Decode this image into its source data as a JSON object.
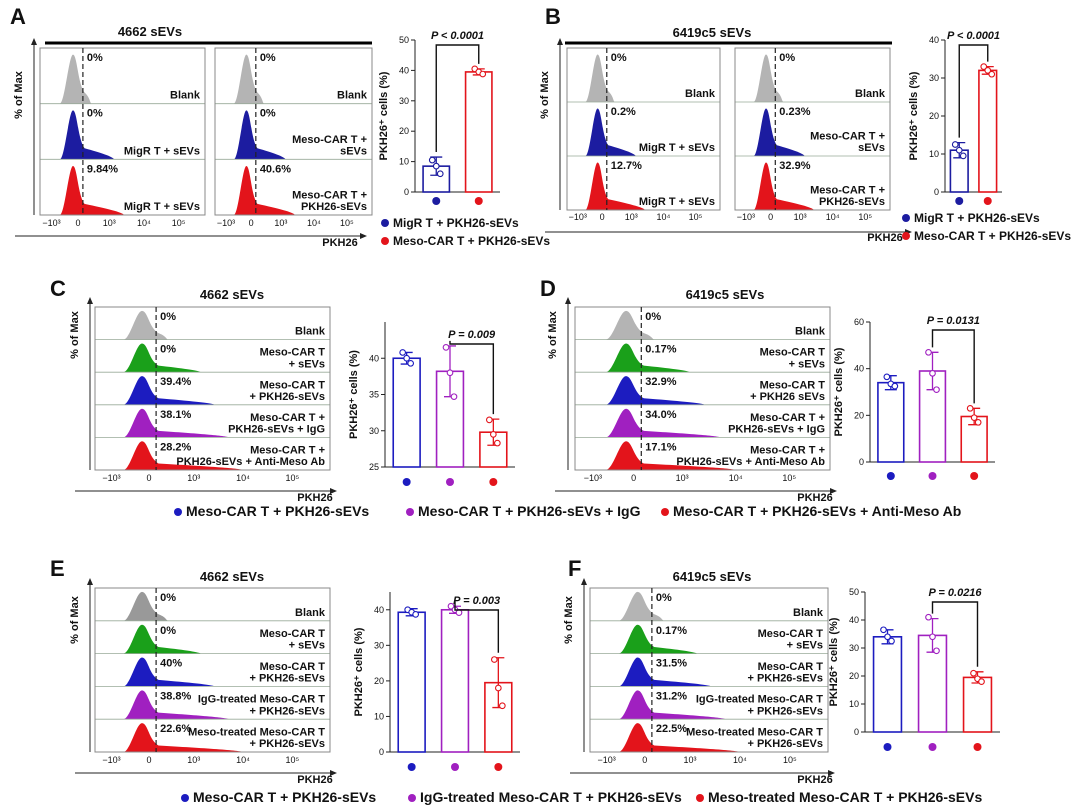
{
  "figure_letters": [
    "A",
    "B",
    "C",
    "D",
    "E",
    "F"
  ],
  "flow_panels": [
    {
      "title": "4662 sEVs",
      "ylabel": "% of Max",
      "xlabel": "PKH26",
      "xticks": [
        "−10³",
        "0",
        "10³",
        "10⁴",
        "10⁵"
      ],
      "boxes": [
        {
          "rows": [
            {
              "label": "Blank",
              "pct": "0%",
              "color": "#b4b4b4"
            },
            {
              "label": "MigR T + sEVs",
              "pct": "0%",
              "color": "#1c1ca0"
            },
            {
              "label": "MigR T +  sEVs",
              "pct": "9.84%",
              "color": "#e3141b"
            }
          ]
        },
        {
          "rows": [
            {
              "label": "Blank",
              "pct": "0%",
              "color": "#b4b4b4"
            },
            {
              "label": "Meso-CAR T +\nsEVs",
              "pct": "0%",
              "color": "#1c1ca0"
            },
            {
              "label": "Meso-CAR T +\nPKH26-sEVs",
              "pct": "40.6%",
              "color": "#e3141b"
            }
          ]
        }
      ]
    },
    {
      "title": "6419c5 sEVs",
      "ylabel": "% of Max",
      "xlabel": "PKH26",
      "xticks": [
        "−10³",
        "0",
        "10³",
        "10⁴",
        "10⁵"
      ],
      "boxes": [
        {
          "rows": [
            {
              "label": "Blank",
              "pct": "0%",
              "color": "#b4b4b4"
            },
            {
              "label": "MigR T + sEVs",
              "pct": "0.2%",
              "color": "#1c1ca0"
            },
            {
              "label": "MigR T +  sEVs",
              "pct": "12.7%",
              "color": "#e3141b"
            }
          ]
        },
        {
          "rows": [
            {
              "label": "Blank",
              "pct": "0%",
              "color": "#b4b4b4"
            },
            {
              "label": "Meso-CAR T +\nsEVs",
              "pct": "0.23%",
              "color": "#1c1ca0"
            },
            {
              "label": "Meso-CAR T +\nPKH26-sEVs",
              "pct": "32.9%",
              "color": "#e3141b"
            }
          ]
        }
      ]
    },
    {
      "title": "4662 sEVs",
      "ylabel": "% of Max",
      "xlabel": "PKH26",
      "xticks": [
        "−10³",
        "0",
        "10³",
        "10⁴",
        "10⁵"
      ],
      "boxes": [
        {
          "rows": [
            {
              "label": "Blank",
              "pct": "0%",
              "color": "#b4b4b4"
            },
            {
              "label": "Meso-CAR T\n+ sEVs",
              "pct": "0%",
              "color": "#1aa01a"
            },
            {
              "label": "Meso-CAR T\n+ PKH26-sEVs",
              "pct": "39.4%",
              "color": "#1c1cc0"
            },
            {
              "label": "Meso-CAR T +\nPKH26-sEVs + IgG",
              "pct": "38.1%",
              "color": "#a020c0"
            },
            {
              "label": "Meso-CAR T +\nPKH26-sEVs + Anti-Meso Ab",
              "pct": "28.2%",
              "color": "#e3141b"
            }
          ]
        }
      ]
    },
    {
      "title": "6419c5 sEVs",
      "ylabel": "% of Max",
      "xlabel": "PKH26",
      "xticks": [
        "−10³",
        "0",
        "10³",
        "10⁴",
        "10⁵"
      ],
      "boxes": [
        {
          "rows": [
            {
              "label": "Blank",
              "pct": "0%",
              "color": "#b4b4b4"
            },
            {
              "label": "Meso-CAR T\n+ sEVs",
              "pct": "0.17%",
              "color": "#1aa01a"
            },
            {
              "label": "Meso-CAR T\n+ PKH26 sEVs",
              "pct": "32.9%",
              "color": "#1c1cc0"
            },
            {
              "label": "Meso-CAR T +\nPKH26-sEVs + IgG",
              "pct": "34.0%",
              "color": "#a020c0"
            },
            {
              "label": "Meso-CAR T +\nPKH26-sEVs + Anti-Meso Ab",
              "pct": "17.1%",
              "color": "#e3141b"
            }
          ]
        }
      ]
    },
    {
      "title": "4662 sEVs",
      "ylabel": "% of Max",
      "xlabel": "PKH26",
      "xticks": [
        "−10³",
        "0",
        "10³",
        "10⁴",
        "10⁵"
      ],
      "boxes": [
        {
          "rows": [
            {
              "label": "Blank",
              "pct": "0%",
              "color": "#999999"
            },
            {
              "label": "Meso-CAR T\n+ sEVs",
              "pct": "0%",
              "color": "#1aa01a"
            },
            {
              "label": "Meso-CAR T\n+ PKH26-sEVs",
              "pct": "40%",
              "color": "#1c1cc0"
            },
            {
              "label": "IgG-treated Meso-CAR T\n+ PKH26-sEVs",
              "pct": "38.8%",
              "color": "#a020c0"
            },
            {
              "label": "Meso-treated Meso-CAR T\n+ PKH26-sEVs",
              "pct": "22.6%",
              "color": "#e3141b"
            }
          ]
        }
      ]
    },
    {
      "title": "6419c5 sEVs",
      "ylabel": "% of Max",
      "xlabel": "PKH26",
      "xticks": [
        "−10³",
        "0",
        "10³",
        "10⁴",
        "10⁵"
      ],
      "boxes": [
        {
          "rows": [
            {
              "label": "Blank",
              "pct": "0%",
              "color": "#b4b4b4"
            },
            {
              "label": "Meso-CAR T\n+ sEVs",
              "pct": "0.17%",
              "color": "#1aa01a"
            },
            {
              "label": "Meso-CAR T\n+ PKH26-sEVs",
              "pct": "31.5%",
              "color": "#1c1cc0"
            },
            {
              "label": "IgG-treated Meso-CAR T\n+ PKH26-sEVs",
              "pct": "31.2%",
              "color": "#a020c0"
            },
            {
              "label": "Meso-treated Meso-CAR T\n+ PKH26-sEVs",
              "pct": "22.5%",
              "color": "#e3141b"
            }
          ]
        }
      ]
    }
  ],
  "chart_data": [
    {
      "type": "bar",
      "title": "P < 0.0001",
      "ylabel": "PKH26⁺ cells (%)",
      "categories": [
        null,
        null
      ],
      "colors": [
        "#1c1ca0",
        "#e3141b"
      ],
      "values": [
        8.5,
        39.5
      ],
      "errors": [
        3,
        1
      ],
      "points": [
        [
          10.5,
          8.5,
          6
        ],
        [
          40.5,
          39.5,
          38.8
        ]
      ],
      "ylim": [
        0,
        50
      ],
      "yticks": [
        0,
        10,
        20,
        30,
        40,
        50
      ],
      "bracket": [
        0,
        1
      ]
    },
    {
      "type": "bar",
      "title": "P < 0.0001",
      "ylabel": "PKH26⁺ cells (%)",
      "categories": [
        null,
        null
      ],
      "colors": [
        "#1c1ca0",
        "#e3141b"
      ],
      "values": [
        11,
        32
      ],
      "errors": [
        2,
        1
      ],
      "points": [
        [
          12.5,
          11,
          9.5
        ],
        [
          33,
          32,
          31
        ]
      ],
      "ylim": [
        0,
        40
      ],
      "yticks": [
        0,
        10,
        20,
        30,
        40
      ],
      "bracket": [
        0,
        1
      ]
    },
    {
      "type": "bar",
      "title": "P = 0.009",
      "ylabel": "PKH26⁺ cells (%)",
      "categories": [
        null,
        null,
        null
      ],
      "colors": [
        "#1c1cc0",
        "#a020c0",
        "#e3141b"
      ],
      "values": [
        40,
        38.2,
        29.8
      ],
      "errors": [
        0.8,
        3.5,
        1.8
      ],
      "points": [
        [
          40.8,
          40,
          39.3
        ],
        [
          41.5,
          38,
          34.7
        ],
        [
          31.5,
          29.5,
          28.3
        ]
      ],
      "ylim": [
        25,
        45
      ],
      "yticks": [
        25,
        30,
        35,
        40
      ],
      "bracket": [
        1,
        2
      ]
    },
    {
      "type": "bar",
      "title": "P = 0.0131",
      "ylabel": "PKH26⁺ cells (%)",
      "categories": [
        null,
        null,
        null
      ],
      "colors": [
        "#1c1cc0",
        "#a020c0",
        "#e3141b"
      ],
      "values": [
        34,
        39,
        19.5
      ],
      "errors": [
        3,
        8,
        3.5
      ],
      "points": [
        [
          36.5,
          33.5,
          32.5
        ],
        [
          47,
          38,
          31
        ],
        [
          23,
          19,
          17
        ]
      ],
      "ylim": [
        0,
        60
      ],
      "yticks": [
        0,
        20,
        40,
        60
      ],
      "bracket": [
        1,
        2
      ]
    },
    {
      "type": "bar",
      "title": "P = 0.003",
      "ylabel": "PKH26⁺ cells (%)",
      "categories": [
        null,
        null,
        null
      ],
      "colors": [
        "#1c1cc0",
        "#a020c0",
        "#e3141b"
      ],
      "values": [
        39.3,
        40,
        19.5
      ],
      "errors": [
        1,
        1,
        7
      ],
      "points": [
        [
          40,
          39.3,
          38.7
        ],
        [
          41,
          40,
          39.2
        ],
        [
          26,
          18,
          13
        ]
      ],
      "ylim": [
        0,
        45
      ],
      "yticks": [
        0,
        10,
        20,
        30,
        40
      ],
      "bracket": [
        1,
        2
      ]
    },
    {
      "type": "bar",
      "title": "P = 0.0216",
      "ylabel": "PKH26⁺ cells (%)",
      "categories": [
        null,
        null,
        null
      ],
      "colors": [
        "#1c1cc0",
        "#a020c0",
        "#e3141b"
      ],
      "values": [
        34,
        34.5,
        19.5
      ],
      "errors": [
        2.5,
        6,
        2
      ],
      "points": [
        [
          36.5,
          34,
          32.5
        ],
        [
          41,
          34,
          29
        ],
        [
          21,
          19,
          18
        ]
      ],
      "ylim": [
        0,
        50
      ],
      "yticks": [
        0,
        10,
        20,
        30,
        40,
        50
      ],
      "bracket": [
        1,
        2
      ]
    }
  ],
  "legends": [
    {
      "items": [
        {
          "label": "MigR T + PKH26-sEVs",
          "color": "#1c1ca0"
        },
        {
          "label": "Meso-CAR T + PKH26-sEVs",
          "color": "#e3141b"
        }
      ]
    },
    {
      "items": [
        {
          "label": "MigR T + PKH26-sEVs",
          "color": "#1c1ca0"
        },
        {
          "label": "Meso-CAR T + PKH26-sEVs",
          "color": "#e3141b"
        }
      ]
    },
    {
      "items": [
        {
          "label": "Meso-CAR T + PKH26-sEVs",
          "color": "#1c1cc0"
        },
        {
          "label": "Meso-CAR T + PKH26-sEVs + IgG",
          "color": "#a020c0"
        },
        {
          "label": "Meso-CAR T + PKH26-sEVs + Anti-Meso Ab",
          "color": "#e3141b"
        }
      ]
    },
    {
      "items": [
        {
          "label": "Meso-CAR T + PKH26-sEVs",
          "color": "#1c1cc0"
        },
        {
          "label": "IgG-treated Meso-CAR T + PKH26-sEVs",
          "color": "#a020c0"
        },
        {
          "label": "Meso-treated Meso-CAR T + PKH26-sEVs",
          "color": "#e3141b"
        }
      ]
    }
  ]
}
